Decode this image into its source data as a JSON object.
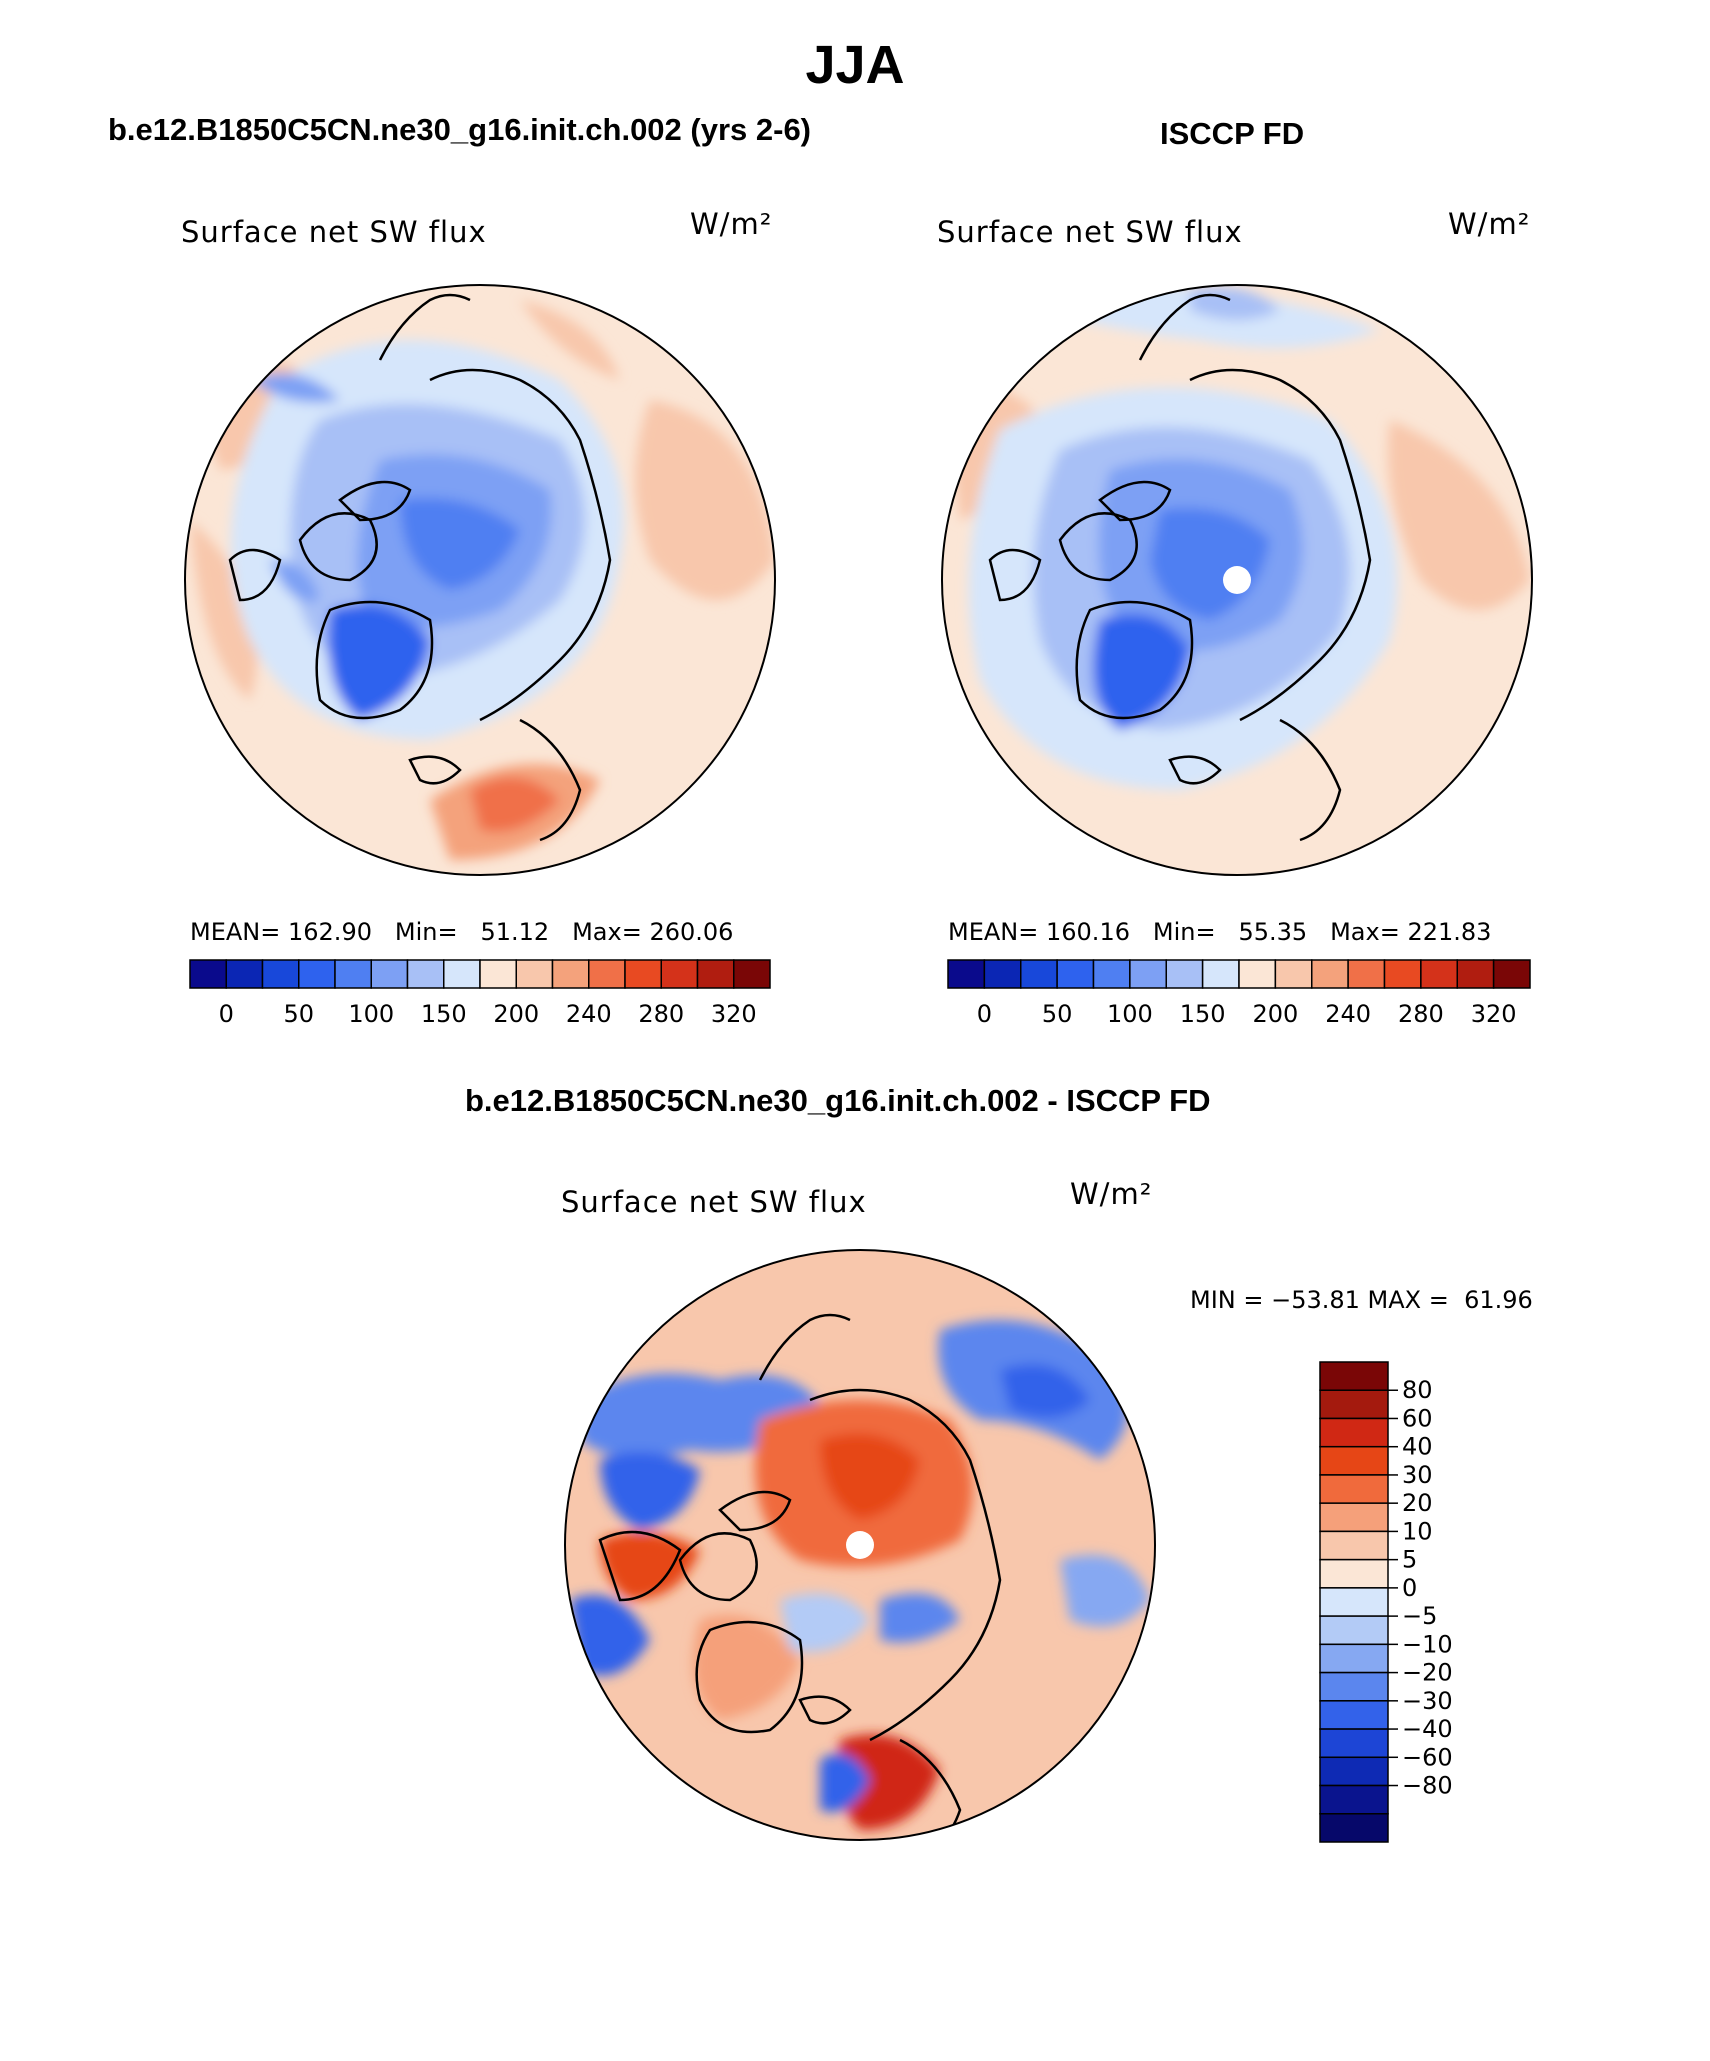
{
  "title": "JJA",
  "panels": {
    "model": {
      "subtitle": "b.e12.B1850C5CN.ne30_g16.init.ch.002 (yrs 2-6)",
      "variable": "Surface net SW flux",
      "units": "W/m²",
      "mean_label": "MEAN=",
      "mean": "162.90",
      "min_label": "Min=",
      "min": "51.12",
      "max_label": "Max=",
      "max": "260.06"
    },
    "obs": {
      "subtitle": "ISCCP FD",
      "variable": "Surface net SW flux",
      "units": "W/m²",
      "mean_label": "MEAN=",
      "mean": "160.16",
      "min_label": "Min=",
      "min": "55.35",
      "max_label": "Max=",
      "max": "221.83"
    },
    "diff": {
      "subtitle": "b.e12.B1850C5CN.ne30_g16.init.ch.002 - ISCCP FD",
      "variable": "Surface net SW flux",
      "units": "W/m²",
      "minmax": "MIN = −53.81 MAX =  61.96"
    }
  },
  "colorbars": {
    "abs": {
      "colors": [
        "#0a0a8c",
        "#0b26b4",
        "#1848da",
        "#2e62ee",
        "#4f7ff2",
        "#7da0f4",
        "#a8c0f6",
        "#d6e6fb",
        "#fbe6d6",
        "#f8c7ac",
        "#f4a27c",
        "#f07048",
        "#e84a22",
        "#d4321a",
        "#b01d10",
        "#7a0606"
      ],
      "tick_labels": [
        "0",
        "50",
        "100",
        "150",
        "200",
        "240",
        "280",
        "320"
      ]
    },
    "diff": {
      "colors": [
        "#7a0606",
        "#a41a0e",
        "#d02814",
        "#e64616",
        "#f06a3c",
        "#f5a07a",
        "#f8c7ac",
        "#fbe6d6",
        "#d6e6fb",
        "#b3cbf6",
        "#86a8f2",
        "#5b86ee",
        "#3362ea",
        "#1d45d6",
        "#0e2ab4",
        "#0a148e",
        "#06086a"
      ],
      "tick_labels": [
        "80",
        "60",
        "40",
        "30",
        "20",
        "10",
        "5",
        "0",
        "−5",
        "−10",
        "−20",
        "−30",
        "−40",
        "−60",
        "−80"
      ]
    }
  }
}
